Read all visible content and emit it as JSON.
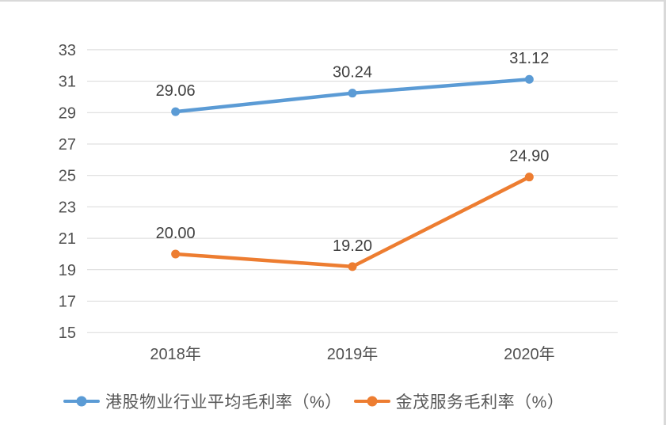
{
  "chart_data": {
    "type": "line",
    "categories": [
      "2018年",
      "2019年",
      "2020年"
    ],
    "series": [
      {
        "name": "港股物业行业平均毛利率（%）",
        "values": [
          29.06,
          30.24,
          31.12
        ],
        "labels": [
          "29.06",
          "30.24",
          "31.12"
        ],
        "color": "#5B9BD5"
      },
      {
        "name": "金茂服务毛利率（%）",
        "values": [
          20.0,
          19.2,
          24.9
        ],
        "labels": [
          "20.00",
          "19.20",
          "24.90"
        ],
        "color": "#ED7D31"
      }
    ],
    "y_axis": {
      "min": 15,
      "max": 33,
      "step": 2,
      "ticks": [
        15,
        17,
        19,
        21,
        23,
        25,
        27,
        29,
        31,
        33
      ]
    },
    "grid": true,
    "legend_position": "bottom",
    "gridline_color": "#d9d9d9",
    "axis_label_color": "#505050",
    "data_label_color": "#404040"
  }
}
